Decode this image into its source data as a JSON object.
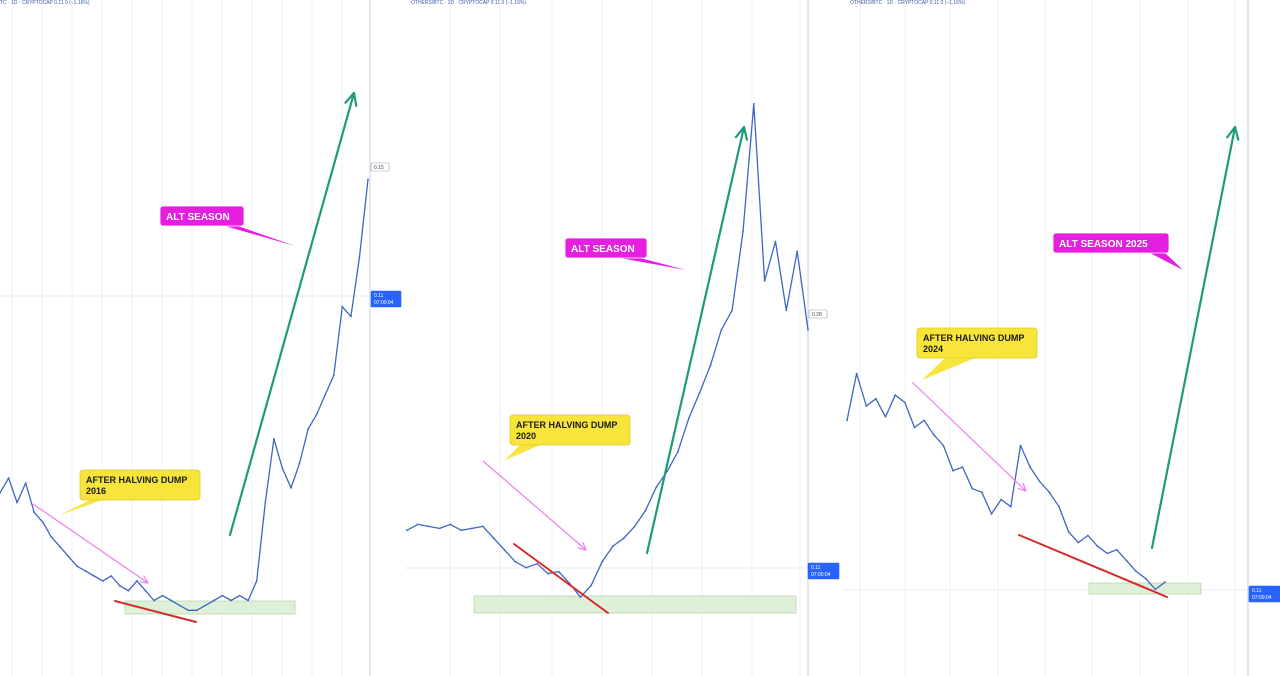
{
  "panels": [
    {
      "header": "TC · 1D · CRYPTOCAP  0.11  0 (−1.16%)",
      "price_tags": [
        {
          "text": "0.15",
          "style": "outline"
        },
        {
          "text": "0.11",
          "sub": "07:00:04",
          "style": "filled"
        }
      ],
      "callouts": [
        {
          "text": [
            "ALT SEASON"
          ],
          "color": "#e51ee0",
          "text_color": "#ffffff",
          "role": "alt-season"
        },
        {
          "text": [
            "AFTER HALVING DUMP",
            "2016"
          ],
          "color": "#f7e53b",
          "text_color": "#1a1a1a",
          "role": "halving-dump"
        }
      ]
    },
    {
      "header": "OTHERS/BTC · 1D · CRYPTOCAP  0.11  0 (−1.16%)",
      "price_tags": [
        {
          "text": "0.28",
          "style": "outline"
        },
        {
          "text": "0.11",
          "sub": "07:00:04",
          "style": "filled"
        }
      ],
      "callouts": [
        {
          "text": [
            "ALT SEASON"
          ],
          "color": "#e51ee0",
          "text_color": "#ffffff",
          "role": "alt-season"
        },
        {
          "text": [
            "AFTER HALVING DUMP",
            "2020"
          ],
          "color": "#f7e53b",
          "text_color": "#1a1a1a",
          "role": "halving-dump"
        }
      ]
    },
    {
      "header": "OTHERS/BTC · 1D · CRYPTOCAP  0.11  0 (−1.16%)",
      "price_tags": [
        {
          "text": "0.11",
          "sub": "07:00:04",
          "style": "filled"
        }
      ],
      "callouts": [
        {
          "text": [
            "ALT SEASON 2025"
          ],
          "color": "#e51ee0",
          "text_color": "#ffffff",
          "role": "alt-season"
        },
        {
          "text": [
            "AFTER HALVING DUMP",
            "2024"
          ],
          "color": "#f7e53b",
          "text_color": "#1a1a1a",
          "role": "halving-dump"
        }
      ]
    }
  ],
  "colors": {
    "price_line": "#3f66c4",
    "trend_arrow": "#1f9a7a",
    "support_line": "#d42a2a",
    "dump_arrow": "#ee7fe8",
    "accumulation_zone": "#dff0d8",
    "grid": "#eef0f4",
    "tag_blue": "#2962ff"
  },
  "chart_data": [
    {
      "type": "line",
      "series": [
        {
          "values": [
            0.112,
            0.115,
            0.11,
            0.114,
            0.108,
            0.106,
            0.103,
            0.101,
            0.099,
            0.097,
            0.096,
            0.095,
            0.094,
            0.095,
            0.093,
            0.092,
            0.094,
            0.092,
            0.09,
            0.091,
            0.09,
            0.089,
            0.088,
            0.088,
            0.089,
            0.09,
            0.091,
            0.09,
            0.091,
            0.09,
            0.094,
            0.11,
            0.123,
            0.117,
            0.113,
            0.118,
            0.125,
            0.128,
            0.132,
            0.136,
            0.15,
            0.148,
            0.16,
            0.176
          ]
        }
      ]
    },
    {
      "type": "line",
      "series": [
        {
          "values": [
            0.138,
            0.141,
            0.14,
            0.139,
            0.141,
            0.138,
            0.139,
            0.14,
            0.134,
            0.128,
            0.122,
            0.119,
            0.121,
            0.116,
            0.117,
            0.111,
            0.104,
            0.11,
            0.122,
            0.13,
            0.134,
            0.14,
            0.148,
            0.16,
            0.168,
            0.178,
            0.195,
            0.208,
            0.222,
            0.24,
            0.25,
            0.29,
            0.355,
            0.265,
            0.285,
            0.25,
            0.28,
            0.24
          ]
        }
      ]
    },
    {
      "type": "line",
      "series": [
        {
          "values": [
            0.154,
            0.167,
            0.158,
            0.16,
            0.155,
            0.161,
            0.159,
            0.152,
            0.154,
            0.15,
            0.147,
            0.14,
            0.141,
            0.135,
            0.134,
            0.128,
            0.132,
            0.13,
            0.147,
            0.141,
            0.137,
            0.134,
            0.13,
            0.123,
            0.12,
            0.122,
            0.119,
            0.117,
            0.118,
            0.115,
            0.112,
            0.11,
            0.107,
            0.109
          ]
        }
      ]
    }
  ]
}
